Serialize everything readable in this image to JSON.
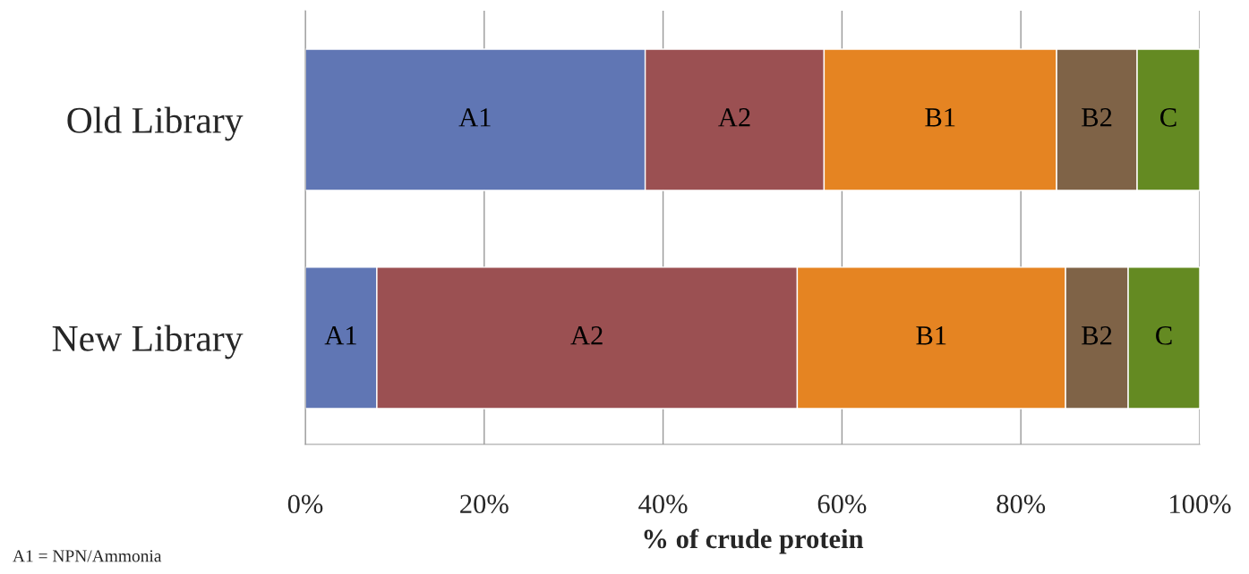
{
  "chart_data": {
    "type": "bar",
    "orientation": "horizontal",
    "stacked": true,
    "categories": [
      "Old Library",
      "New Library"
    ],
    "series": [
      {
        "name": "A1",
        "color": "#6076b4",
        "values": [
          38,
          8
        ]
      },
      {
        "name": "A2",
        "color": "#9b5052",
        "values": [
          20,
          47
        ]
      },
      {
        "name": "B1",
        "color": "#e58422",
        "values": [
          26,
          30
        ]
      },
      {
        "name": "B2",
        "color": "#7f6347",
        "values": [
          9,
          7
        ]
      },
      {
        "name": "C",
        "color": "#648a22",
        "values": [
          7,
          8
        ]
      }
    ],
    "xlabel": "% of crude protein",
    "xlim": [
      0,
      100
    ],
    "xticks": [
      {
        "value": 0,
        "label": "0%"
      },
      {
        "value": 20,
        "label": "20%"
      },
      {
        "value": 40,
        "label": "40%"
      },
      {
        "value": 60,
        "label": "60%"
      },
      {
        "value": 80,
        "label": "80%"
      },
      {
        "value": 100,
        "label": "100%"
      }
    ],
    "grid": "x",
    "legend": false,
    "annotations": [
      "A1 = NPN/Ammonia"
    ]
  }
}
